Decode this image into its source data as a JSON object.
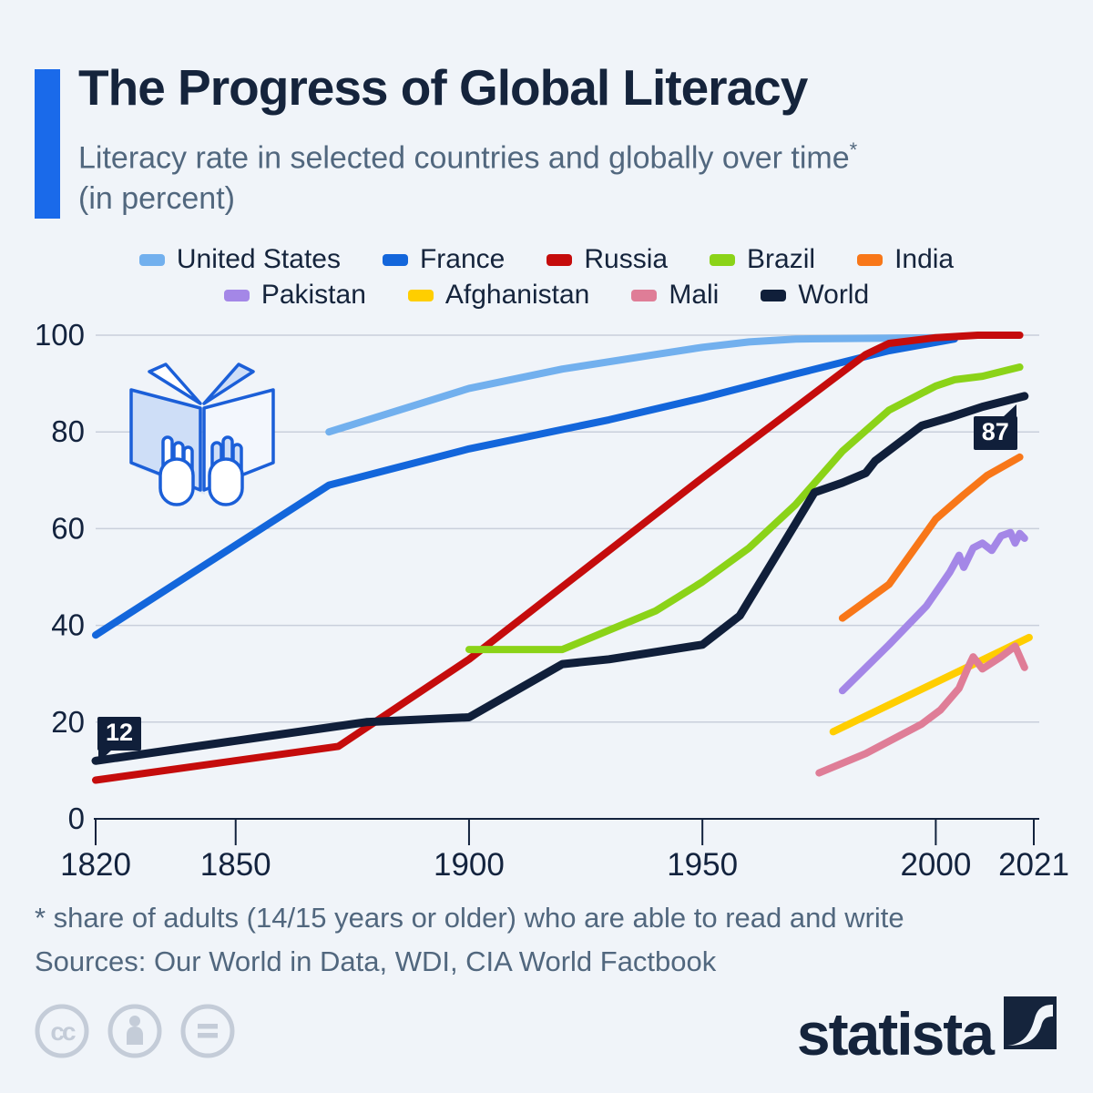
{
  "header": {
    "title": "The Progress of Global Literacy",
    "subtitle": "Literacy rate in selected countries and globally over time",
    "subtitle_marker": "*",
    "subtitle_line2": "(in percent)"
  },
  "chart_data": {
    "type": "line",
    "title": "The Progress of Global Literacy",
    "xlabel": "",
    "ylabel": "",
    "unit": "percent",
    "x_range": [
      1820,
      2021
    ],
    "y_range": [
      0,
      100
    ],
    "x_ticks": [
      "1820",
      "1850",
      "1900",
      "1950",
      "2000",
      "2021"
    ],
    "x_tick_years": [
      1820,
      1850,
      1900,
      1950,
      2000,
      2021
    ],
    "y_ticks": [
      0,
      20,
      40,
      60,
      80,
      100
    ],
    "grid": "horizontal",
    "legend_position": "top",
    "legend_rows": [
      [
        "United States",
        "France",
        "Russia",
        "Brazil",
        "India"
      ],
      [
        "Pakistan",
        "Afghanistan",
        "Mali",
        "World"
      ]
    ],
    "series": [
      {
        "name": "United States",
        "color": "#72B0EE",
        "stroke_width": 8,
        "points": [
          [
            1870,
            80
          ],
          [
            1900,
            89
          ],
          [
            1920,
            93
          ],
          [
            1940,
            96
          ],
          [
            1950,
            97.5
          ],
          [
            1960,
            98.6
          ],
          [
            1970,
            99.2
          ],
          [
            1990,
            99.4
          ],
          [
            2001,
            99.5
          ]
        ]
      },
      {
        "name": "France",
        "color": "#1366DB",
        "stroke_width": 8,
        "points": [
          [
            1820,
            38
          ],
          [
            1870,
            69
          ],
          [
            1900,
            76.5
          ],
          [
            1930,
            82.5
          ],
          [
            1950,
            87
          ],
          [
            1970,
            92
          ],
          [
            1990,
            96.8
          ],
          [
            2004,
            99.2
          ]
        ]
      },
      {
        "name": "Russia",
        "color": "#C50C0C",
        "stroke_width": 8,
        "points": [
          [
            1820,
            8
          ],
          [
            1872,
            15
          ],
          [
            1900,
            33
          ],
          [
            1950,
            70.5
          ],
          [
            1985,
            96
          ],
          [
            1990,
            98.3
          ],
          [
            2000,
            99.5
          ],
          [
            2009,
            100
          ],
          [
            2018,
            100
          ]
        ]
      },
      {
        "name": "Brazil",
        "color": "#8BD318",
        "stroke_width": 8,
        "points": [
          [
            1900,
            35
          ],
          [
            1920,
            35
          ],
          [
            1940,
            43
          ],
          [
            1950,
            49
          ],
          [
            1960,
            56
          ],
          [
            1970,
            65
          ],
          [
            1980,
            76
          ],
          [
            1990,
            84.5
          ],
          [
            2000,
            89.5
          ],
          [
            2004,
            90.8
          ],
          [
            2010,
            91.5
          ],
          [
            2015,
            92.7
          ],
          [
            2018,
            93.4
          ]
        ]
      },
      {
        "name": "India",
        "color": "#F87719",
        "stroke_width": 8,
        "points": [
          [
            1980,
            41.5
          ],
          [
            1990,
            48.5
          ],
          [
            2000,
            62
          ],
          [
            2006,
            67
          ],
          [
            2011,
            71
          ],
          [
            2018,
            74.8
          ]
        ]
      },
      {
        "name": "Pakistan",
        "color": "#A487E7",
        "stroke_width": 8,
        "points": [
          [
            1980,
            26.5
          ],
          [
            1990,
            36
          ],
          [
            1998,
            44
          ],
          [
            2003,
            51
          ],
          [
            2005,
            54.5
          ],
          [
            2006,
            52
          ],
          [
            2008,
            56
          ],
          [
            2010,
            57
          ],
          [
            2012,
            55.5
          ],
          [
            2014,
            58.5
          ],
          [
            2016,
            59.2
          ],
          [
            2017,
            57
          ],
          [
            2018,
            59
          ],
          [
            2019,
            58
          ]
        ]
      },
      {
        "name": "Afghanistan",
        "color": "#FFCE00",
        "stroke_width": 8,
        "points": [
          [
            1978,
            18
          ],
          [
            2020,
            37.5
          ]
        ]
      },
      {
        "name": "Mali",
        "color": "#DF7D97",
        "stroke_width": 8,
        "points": [
          [
            1975,
            9.5
          ],
          [
            1985,
            13.5
          ],
          [
            1997,
            19.6
          ],
          [
            2001,
            22.5
          ],
          [
            2005,
            27
          ],
          [
            2007,
            31.5
          ],
          [
            2008,
            33.5
          ],
          [
            2010,
            31
          ],
          [
            2014,
            33.5
          ],
          [
            2017,
            35.7
          ],
          [
            2019,
            31.3
          ]
        ]
      },
      {
        "name": "World",
        "color": "#101F3A",
        "stroke_width": 9,
        "points": [
          [
            1820,
            12
          ],
          [
            1878,
            20
          ],
          [
            1900,
            21
          ],
          [
            1920,
            32
          ],
          [
            1930,
            33
          ],
          [
            1950,
            36
          ],
          [
            1958,
            42
          ],
          [
            1974,
            67.5
          ],
          [
            1980,
            69.5
          ],
          [
            1985,
            71.5
          ],
          [
            1987,
            74
          ],
          [
            1997,
            81.3
          ],
          [
            2003,
            83
          ],
          [
            2010,
            85.2
          ],
          [
            2019,
            87.4
          ]
        ]
      }
    ],
    "annotations": [
      {
        "label": "12",
        "series": "World",
        "year": 1820,
        "value": 12,
        "placement": "above-start"
      },
      {
        "label": "87",
        "series": "World",
        "year": 2019,
        "value": 87.4,
        "placement": "below-end"
      }
    ]
  },
  "footnote": "* share of adults (14/15 years or older) who are able to read and write",
  "sources": "Sources: Our World in Data, WDI, CIA World Factbook",
  "footer": {
    "brand": "statista",
    "license_icons": [
      "creative-commons",
      "attribution",
      "no-derivatives"
    ]
  },
  "colors": {
    "background": "#F0F4F9",
    "accent_bar": "#1A6AEA",
    "title_text": "#15243C",
    "subtitle_text": "#51677E",
    "gridline": "#C9CFDB",
    "axis": "#13233E",
    "badge_background": "#101F3A",
    "badge_text": "#FFFFFF",
    "license_icon": "#C4CCD8",
    "book_icon_stroke": "#1B5FD8",
    "book_icon_fill": "#CEDEF7"
  }
}
